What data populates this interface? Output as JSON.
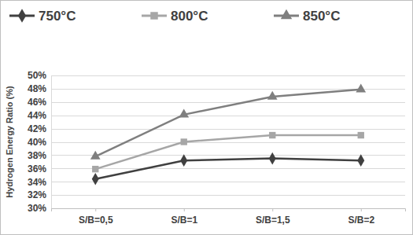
{
  "chart_data": {
    "type": "line",
    "y_label": "Hydrogen Energy Ratio (%)",
    "categories": [
      "S/B=0,5",
      "S/B=1",
      "S/B=1,5",
      "S/B=2"
    ],
    "series": [
      {
        "name": "750°C",
        "color": "#404040",
        "marker": "diamond",
        "line_style": "solid",
        "values": [
          34.4,
          37.2,
          37.5,
          37.2
        ]
      },
      {
        "name": "800°C",
        "color": "#a6a6a6",
        "marker": "square",
        "line_style": "solid",
        "values": [
          35.9,
          40.0,
          41.0,
          41.0
        ]
      },
      {
        "name": "850°C",
        "color": "#7f7f7f",
        "marker": "triangle",
        "line_style": "solid",
        "values": [
          37.8,
          44.1,
          46.8,
          47.9
        ]
      }
    ],
    "ylim": [
      30,
      50
    ],
    "yticks": [
      {
        "value": 30,
        "label": "30%"
      },
      {
        "value": 32,
        "label": "32%"
      },
      {
        "value": 34,
        "label": "34%"
      },
      {
        "value": 36,
        "label": "36%"
      },
      {
        "value": 38,
        "label": "38%"
      },
      {
        "value": 40,
        "label": "40%"
      },
      {
        "value": 42,
        "label": "42%"
      },
      {
        "value": 44,
        "label": "44%"
      },
      {
        "value": 46,
        "label": "46%"
      },
      {
        "value": 48,
        "label": "48%"
      },
      {
        "value": 50,
        "label": "50%"
      }
    ],
    "grid": true,
    "legend": "top"
  }
}
